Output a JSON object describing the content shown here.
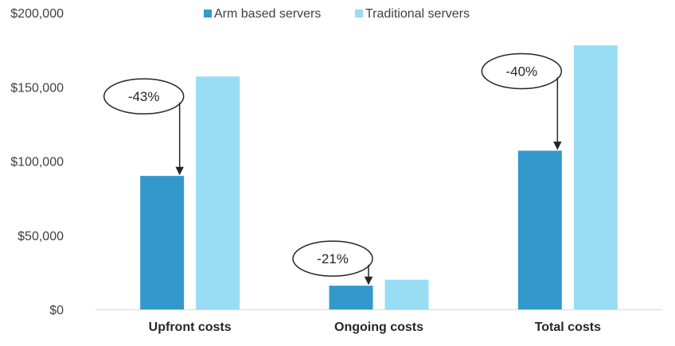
{
  "chart_data": {
    "type": "bar",
    "categories": [
      "Upfront costs",
      "Ongoing costs",
      "Total costs"
    ],
    "series": [
      {
        "name": "Arm based servers",
        "values": [
          90000,
          16000,
          107000
        ],
        "color": "#3399CC"
      },
      {
        "name": "Traditional servers",
        "values": [
          157000,
          20000,
          178000
        ],
        "color": "#99DDF5"
      }
    ],
    "ylim": [
      0,
      200000
    ],
    "yticks": [
      0,
      50000,
      100000,
      150000,
      200000
    ],
    "ytick_labels": [
      "$0",
      "$50,000",
      "$100,000",
      "$150,000",
      "$200,000"
    ],
    "legend_position": "top-center",
    "grid": false,
    "annotations": [
      {
        "category": "Upfront costs",
        "text": "-43%"
      },
      {
        "category": "Ongoing costs",
        "text": "-21%"
      },
      {
        "category": "Total costs",
        "text": "-40%"
      }
    ]
  }
}
